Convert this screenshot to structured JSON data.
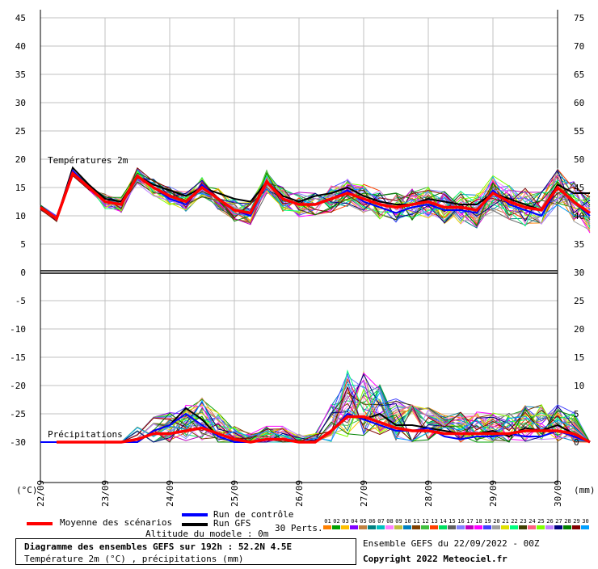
{
  "chart_data": {
    "type": "line",
    "title_block": {
      "heading": "Diagramme des ensembles GEFS sur 192h : 52.2N 4.5E",
      "subheading": "Température 2m (°C) , précipitations (mm)",
      "altitude": "Altitude du modele : 0m",
      "run_info": "Ensemble GEFS du 22/09/2022 - 00Z",
      "copyright": "Copyright 2022 Meteociel.fr"
    },
    "panel_labels": {
      "temperature": "Températures 2m",
      "precipitation": "Précipitations"
    },
    "left_axis": {
      "unit_label": "(°C)",
      "ticks": [
        "45",
        "40",
        "35",
        "30",
        "25",
        "20",
        "15",
        "10",
        "5",
        "0",
        "-5",
        "-10",
        "-15",
        "-20",
        "-25",
        "-30"
      ],
      "range": [
        -30,
        45
      ]
    },
    "right_axis": {
      "unit_label": "(mm)",
      "ticks": [
        "75",
        "70",
        "65",
        "60",
        "55",
        "50",
        "45",
        "40",
        "35",
        "30",
        "25",
        "20",
        "15",
        "10",
        "5",
        "0"
      ],
      "range": [
        0,
        75
      ]
    },
    "x_labels": [
      "22/09",
      "23/09",
      "24/09",
      "25/09",
      "26/09",
      "27/09",
      "28/09",
      "29/09",
      "30/09"
    ],
    "x_steps_per_day": 4,
    "grid": true,
    "legend": {
      "mean": "Moyenne des scénarios",
      "control": "Run de contrôle",
      "gfs": "Run GFS",
      "perts": "30 Perts.",
      "pert_numbers": [
        "01",
        "02",
        "03",
        "04",
        "05",
        "06",
        "07",
        "08",
        "09",
        "10",
        "11",
        "12",
        "13",
        "14",
        "15",
        "16",
        "17",
        "18",
        "19",
        "20",
        "21",
        "22",
        "23",
        "24",
        "25",
        "26",
        "27",
        "28",
        "29",
        "30"
      ]
    },
    "colors": {
      "mean": "#ff0000",
      "control": "#0000ff",
      "gfs": "#000000",
      "perts": [
        "#ff8000",
        "#00a000",
        "#ffc000",
        "#8000ff",
        "#c08040",
        "#008080",
        "#00c0c0",
        "#ff80ff",
        "#c0c040",
        "#0080c0",
        "#804000",
        "#40c040",
        "#ff4000",
        "#00e060",
        "#606060",
        "#8080ff",
        "#c000c0",
        "#ff00ff",
        "#4040ff",
        "#a0a0a0",
        "#e0e000",
        "#00ff80",
        "#404000",
        "#ff6080",
        "#80ff00",
        "#c080ff",
        "#000080",
        "#008000",
        "#800000",
        "#00a0ff"
      ]
    },
    "series": [
      {
        "name": "Moyenne des scénarios",
        "kind": "mean",
        "values": [
          11.5,
          9.5,
          17.5,
          15,
          12.5,
          12,
          17,
          15,
          13.5,
          12.5,
          15,
          13,
          11,
          10.5,
          16,
          13,
          12,
          12,
          13,
          14,
          13,
          12,
          11.5,
          12,
          12.5,
          11.5,
          11.5,
          11,
          14,
          12.5,
          11.5,
          11,
          15,
          12.5,
          10.5
        ]
      },
      {
        "name": "Run de contrôle",
        "kind": "control",
        "values": [
          11.5,
          9.5,
          18,
          15,
          12.5,
          12,
          17,
          15,
          13,
          12,
          15.5,
          13,
          11,
          10,
          16,
          13,
          12,
          12,
          13,
          14.5,
          12.5,
          11.5,
          10.5,
          11.5,
          12,
          11,
          11,
          10.5,
          14.5,
          12,
          11,
          10,
          15,
          12.5,
          10
        ]
      },
      {
        "name": "Run GFS",
        "kind": "gfs",
        "values": [
          11.5,
          9.5,
          18.5,
          15.5,
          13,
          12.5,
          17,
          15.5,
          14.5,
          13.5,
          15,
          14,
          13,
          12.5,
          16,
          13.5,
          12.5,
          13.5,
          14,
          15,
          13.5,
          12.5,
          12,
          12,
          13,
          12.5,
          12,
          12,
          14,
          13,
          12,
          11,
          15.5,
          14,
          14
        ]
      }
    ],
    "precipitation": [
      {
        "name": "Moyenne des scénarios",
        "kind": "mean",
        "values": [
          0,
          0,
          0,
          0,
          0,
          0,
          0.5,
          1.5,
          1.5,
          2,
          2.5,
          1.5,
          0.5,
          0,
          0.5,
          0.5,
          0,
          0,
          2,
          4.5,
          4.5,
          3.5,
          2.5,
          2,
          2,
          1.5,
          1.5,
          1.5,
          1.5,
          1.5,
          2,
          2,
          2,
          1.5,
          0
        ]
      },
      {
        "name": "Run de contrôle",
        "kind": "control",
        "values": [
          0,
          0,
          0,
          0,
          0,
          0,
          0,
          2,
          3,
          5,
          3,
          1,
          0,
          0,
          0.5,
          0.5,
          0,
          0,
          2,
          5,
          4,
          3,
          2,
          2,
          2.5,
          1,
          0.5,
          1,
          1,
          1.5,
          1,
          1,
          2,
          1,
          0
        ]
      },
      {
        "name": "Run GFS",
        "kind": "gfs",
        "values": [
          0,
          0,
          0,
          0,
          0,
          0,
          0,
          2,
          3,
          6,
          4,
          1,
          0,
          0,
          0.5,
          0.5,
          0,
          0,
          2,
          5,
          4,
          5,
          3,
          3,
          2.5,
          2,
          1.5,
          1.5,
          2,
          1,
          2.5,
          2,
          3,
          1.5,
          0
        ]
      }
    ]
  }
}
